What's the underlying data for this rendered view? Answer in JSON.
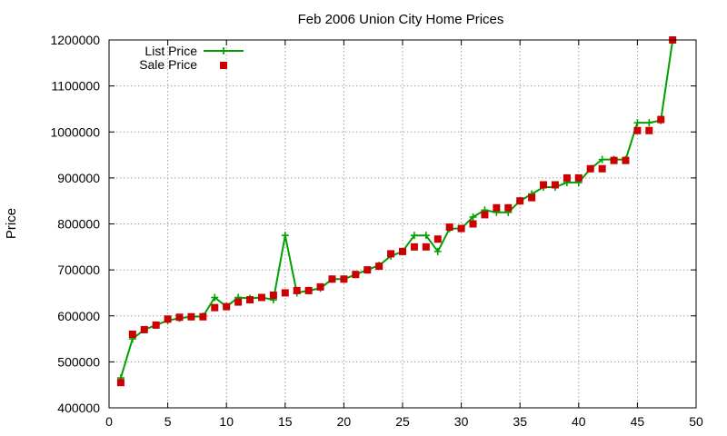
{
  "chart_data": {
    "type": "line",
    "title": "Feb 2006 Union City Home Prices",
    "xlabel": "",
    "ylabel": "Price",
    "xlim": [
      0,
      50
    ],
    "ylim": [
      400000,
      1200000
    ],
    "xticks": [
      "0",
      "5",
      "10",
      "15",
      "20",
      "25",
      "30",
      "35",
      "40",
      "45",
      "50"
    ],
    "yticks": [
      "400000",
      "500000",
      "600000",
      "700000",
      "800000",
      "900000",
      "1000000",
      "1100000",
      "1200000"
    ],
    "grid": true,
    "legend_position": "top-left",
    "x": [
      1,
      2,
      3,
      4,
      5,
      6,
      7,
      8,
      9,
      10,
      11,
      12,
      13,
      14,
      15,
      16,
      17,
      18,
      19,
      20,
      21,
      22,
      23,
      24,
      25,
      26,
      27,
      28,
      29,
      30,
      31,
      32,
      33,
      34,
      35,
      36,
      37,
      38,
      39,
      40,
      41,
      42,
      43,
      44,
      45,
      46,
      47,
      48
    ],
    "series": [
      {
        "name": "List Price",
        "style": "line-plus",
        "color": "#00a000",
        "values": [
          465000,
          550000,
          570000,
          580000,
          590000,
          595000,
          598000,
          599000,
          640000,
          620000,
          640000,
          638000,
          640000,
          635000,
          775000,
          650000,
          655000,
          660000,
          680000,
          680000,
          690000,
          700000,
          710000,
          730000,
          740000,
          775000,
          775000,
          740000,
          790000,
          790000,
          815000,
          830000,
          825000,
          825000,
          850000,
          865000,
          880000,
          880000,
          890000,
          890000,
          920000,
          940000,
          940000,
          940000,
          1020000,
          1020000,
          1025000,
          1200000
        ]
      },
      {
        "name": "Sale Price",
        "style": "square",
        "color": "#cc0000",
        "values": [
          455000,
          560000,
          570000,
          580000,
          593000,
          597000,
          598000,
          598000,
          618000,
          620000,
          630000,
          635000,
          640000,
          645000,
          650000,
          655000,
          655000,
          663000,
          680000,
          680000,
          690000,
          700000,
          708000,
          735000,
          740000,
          750000,
          750000,
          767000,
          793000,
          790000,
          800000,
          820000,
          835000,
          835000,
          850000,
          857000,
          885000,
          885000,
          900000,
          900000,
          920000,
          920000,
          938000,
          938000,
          1003000,
          1003000,
          1027000,
          1200000
        ]
      }
    ]
  }
}
